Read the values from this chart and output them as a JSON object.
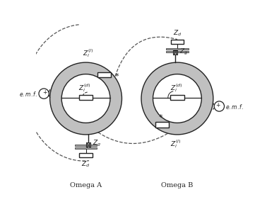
{
  "fig_width": 3.78,
  "fig_height": 2.78,
  "dpi": 100,
  "bg_color": "#ffffff",
  "ring_gray": "#c0c0c0",
  "line_color": "#222222",
  "component_fill": "#ffffff",
  "dashed_color": "#555555",
  "Acx": 0.255,
  "Acy": 0.5,
  "Bcx": 0.725,
  "Bcy": 0.5,
  "r_mid": 0.155,
  "r_half_width": 0.03
}
